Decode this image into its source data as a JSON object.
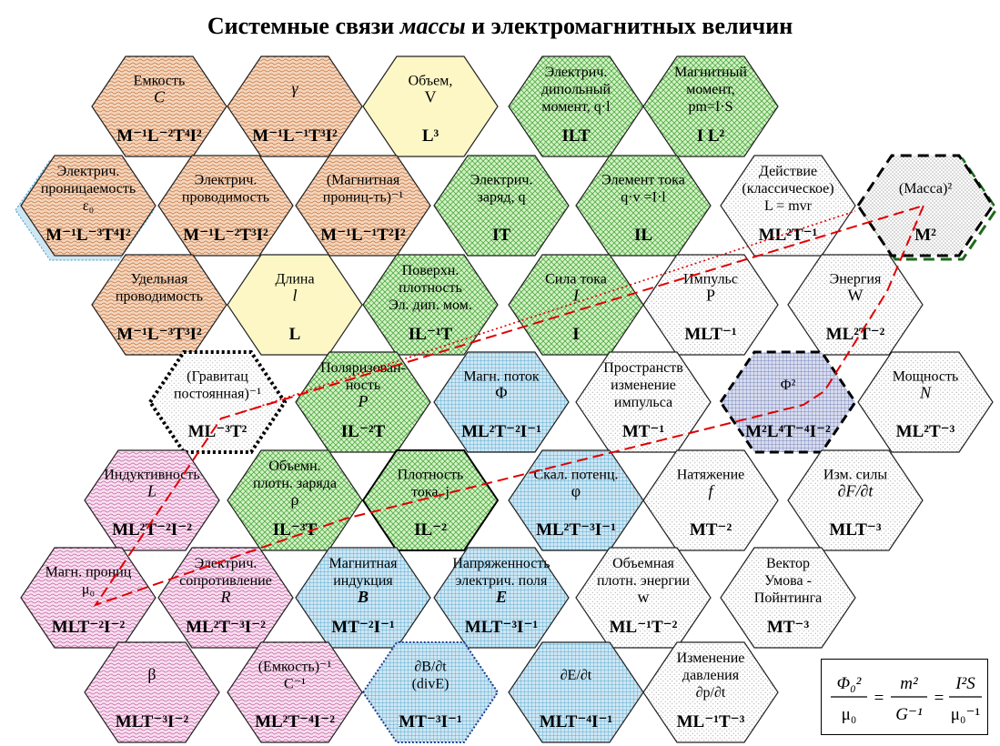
{
  "title": {
    "before": "Системные связи ",
    "italic": "массы",
    "after": " и электромагнитных величин"
  },
  "colors": {
    "brown": "#f3d6bd",
    "brown_pattern": "#c8703a",
    "green": "#d6f1c8",
    "green_pattern": "#4fae43",
    "blue": "#cfe6f3",
    "blue_pattern": "#3b9cc7",
    "yellow": "#fdf7c6",
    "pink": "#f8e0ef",
    "pink_pattern": "#c45ca2",
    "white_dots": "#8a8a8a",
    "mass_dots": "#444444",
    "red_line": "#e00000"
  },
  "cells": [
    {
      "id": "capacitance",
      "lines": [
        "Емкость"
      ],
      "sym": "C",
      "dim": "M⁻¹L⁻²T⁴I²",
      "fill": "brown"
    },
    {
      "id": "gamma",
      "lines": [],
      "sym": "γ",
      "dim": "M⁻¹L⁻¹T³I²",
      "fill": "brown"
    },
    {
      "id": "volume",
      "lines": [
        "Объем,"
      ],
      "sym": "V",
      "dim": "L³",
      "fill": "yellow",
      "sym_plain": true
    },
    {
      "id": "dipole-moment",
      "lines": [
        "Электрич.",
        "дипольный",
        "момент, q·l"
      ],
      "sym": "",
      "dim": "ILT",
      "fill": "green"
    },
    {
      "id": "magnetic-moment",
      "lines": [
        "Магнитный",
        "момент,",
        "pm=I·S"
      ],
      "sym": "",
      "dim": "I L²",
      "fill": "green"
    },
    {
      "id": "permittivity",
      "lines": [
        "Электрич.",
        "проницаемость",
        "ε₀"
      ],
      "sym": "",
      "dim": "M⁻¹L⁻³T⁴I²",
      "fill": "brown",
      "shadow": true
    },
    {
      "id": "conductance",
      "lines": [
        "Электрич.",
        "проводимость"
      ],
      "sym": "",
      "dim": "M⁻¹L⁻²T³I²",
      "fill": "brown"
    },
    {
      "id": "reluctance",
      "lines": [
        "(Магнитная",
        "прониц-ть)⁻¹"
      ],
      "sym": "",
      "dim": "M⁻¹L⁻¹T²I²",
      "fill": "brown"
    },
    {
      "id": "charge",
      "lines": [
        "Электрич.",
        "заряд, q"
      ],
      "sym": "",
      "dim": "IT",
      "fill": "green"
    },
    {
      "id": "current-element",
      "lines": [
        "Элемент тока",
        "q·v =I·l"
      ],
      "sym": "",
      "dim": "IL",
      "fill": "green"
    },
    {
      "id": "action",
      "lines": [
        "Действие",
        "(классическое)",
        "L = mvr"
      ],
      "sym": "",
      "dim": "ML²T⁻¹",
      "fill": "white"
    },
    {
      "id": "mass-squared",
      "lines": [
        "(Масса)²"
      ],
      "sym": "",
      "dim": "M²",
      "fill": "mass",
      "border": "mass"
    },
    {
      "id": "resistivity-inv",
      "lines": [
        "Удельная",
        "проводимость"
      ],
      "sym": "",
      "dim": "M⁻¹L⁻³T³I²",
      "fill": "brown"
    },
    {
      "id": "length",
      "lines": [
        "Длина"
      ],
      "sym": "l",
      "dim": "L",
      "fill": "yellow"
    },
    {
      "id": "polarization-surface",
      "lines": [
        "Поверхн.",
        "плотность",
        "Эл. дип. мом."
      ],
      "sym": "",
      "dim": "IL⁻¹T",
      "fill": "green"
    },
    {
      "id": "current",
      "lines": [
        "Сила тока"
      ],
      "sym": "I",
      "dim": "I",
      "fill": "green"
    },
    {
      "id": "momentum",
      "lines": [
        "Импульс"
      ],
      "sym": "P",
      "dim": "MLT⁻¹",
      "fill": "white",
      "sym_plain": true
    },
    {
      "id": "energy",
      "lines": [
        "Энергия"
      ],
      "sym": "W",
      "dim": "ML²T⁻²",
      "fill": "white",
      "sym_plain": true
    },
    {
      "id": "gravitational",
      "lines": [
        "(Гравитац",
        "постоянная)⁻¹"
      ],
      "sym": "",
      "dim": "ML⁻³T²",
      "fill": "grav",
      "border": "grav"
    },
    {
      "id": "polarization",
      "lines": [
        "Поляризован-",
        "ность"
      ],
      "sym": "P",
      "dim": "IL⁻²T",
      "fill": "green"
    },
    {
      "id": "magnetic-flux",
      "lines": [
        "Магн. поток"
      ],
      "sym": "Φ",
      "dim": "ML²T⁻²I⁻¹",
      "fill": "blue",
      "sym_plain": true
    },
    {
      "id": "momentum-spatial",
      "lines": [
        "Пространств",
        "изменение",
        "импульса"
      ],
      "sym": "",
      "dim": "MT⁻¹",
      "fill": "white"
    },
    {
      "id": "flux-squared",
      "lines": [
        "Φ²"
      ],
      "sym": "",
      "dim": "M²L⁴T⁻⁴I⁻²",
      "fill": "flux2",
      "border": "flux2"
    },
    {
      "id": "power",
      "lines": [
        "Мощность"
      ],
      "sym": "N",
      "dim": "ML²T⁻³",
      "fill": "white"
    },
    {
      "id": "inductance",
      "lines": [
        "Индуктивность"
      ],
      "sym": "L",
      "dim": "ML²T⁻²I⁻²",
      "fill": "pink"
    },
    {
      "id": "charge-density",
      "lines": [
        "Объемн.",
        "плотн. заряда"
      ],
      "sym": "ρ",
      "dim": "IL⁻³T",
      "fill": "green",
      "sym_plain": true
    },
    {
      "id": "current-density",
      "lines": [
        "Плотность",
        "тока, j"
      ],
      "sym": "",
      "dim": "IL⁻²",
      "fill": "green",
      "border": "dark"
    },
    {
      "id": "scalar-potential",
      "lines": [
        "Скал. потенц."
      ],
      "sym": "φ",
      "dim": "ML²T⁻³I⁻¹",
      "fill": "blue",
      "sym_plain": true
    },
    {
      "id": "tension",
      "lines": [
        "Натяжение"
      ],
      "sym": "f",
      "dim": "MT⁻²",
      "fill": "white"
    },
    {
      "id": "force-change",
      "lines": [
        "Изм. силы"
      ],
      "sym": "∂F/∂t",
      "dim": "MLT⁻³",
      "fill": "white"
    },
    {
      "id": "permeability",
      "lines": [
        "Магн. прониц",
        "μ₀"
      ],
      "sym": "",
      "dim": "MLT⁻²I⁻²",
      "fill": "pink"
    },
    {
      "id": "resistance",
      "lines": [
        "Электрич.",
        "сопротивление"
      ],
      "sym": "R",
      "dim": "ML²T⁻³I⁻²",
      "fill": "pink"
    },
    {
      "id": "magnetic-induction",
      "lines": [
        "Магнитная",
        "индукция"
      ],
      "sym": "B",
      "dim": "MT⁻²I⁻¹",
      "fill": "blue",
      "sym_bold": true
    },
    {
      "id": "electric-field",
      "lines": [
        "Напряженность",
        "электрич. поля"
      ],
      "sym": "E",
      "dim": "MLT⁻³I⁻¹",
      "fill": "blue",
      "sym_bold": true
    },
    {
      "id": "energy-density",
      "lines": [
        "Объемная",
        "плотн. энергии"
      ],
      "sym": "w",
      "dim": "ML⁻¹T⁻²",
      "fill": "white",
      "sym_plain": true
    },
    {
      "id": "poynting",
      "lines": [
        "Вектор",
        "Умова -",
        "Пойнтинга"
      ],
      "sym": "",
      "dim": "MT⁻³",
      "fill": "white"
    },
    {
      "id": "beta",
      "lines": [],
      "sym": "β",
      "dim": "MLT⁻³I⁻²",
      "fill": "pink",
      "sym_plain": true
    },
    {
      "id": "elastance",
      "lines": [
        "(Емкость)⁻¹",
        "C⁻¹"
      ],
      "sym": "",
      "dim": "ML²T⁻⁴I⁻²",
      "fill": "pink"
    },
    {
      "id": "db-dt",
      "lines": [
        "∂B/∂t",
        "(divE)"
      ],
      "sym": "",
      "dim": "MT⁻³I⁻¹",
      "fill": "blue",
      "border": "dots"
    },
    {
      "id": "de-dt",
      "lines": [
        "∂E/∂t"
      ],
      "sym": "",
      "dim": "MLT⁻⁴I⁻¹",
      "fill": "blue"
    },
    {
      "id": "pressure-change",
      "lines": [
        "Изменение",
        "давления",
        "∂p/∂t"
      ],
      "sym": "",
      "dim": "ML⁻¹T⁻³",
      "fill": "white"
    }
  ],
  "formula": {
    "num1": "Φ₀²",
    "den1": "μ₀",
    "num2": "m²",
    "den2": "G⁻¹",
    "num3": "I²S",
    "den3": "μ₀⁻¹",
    "eq": "="
  }
}
